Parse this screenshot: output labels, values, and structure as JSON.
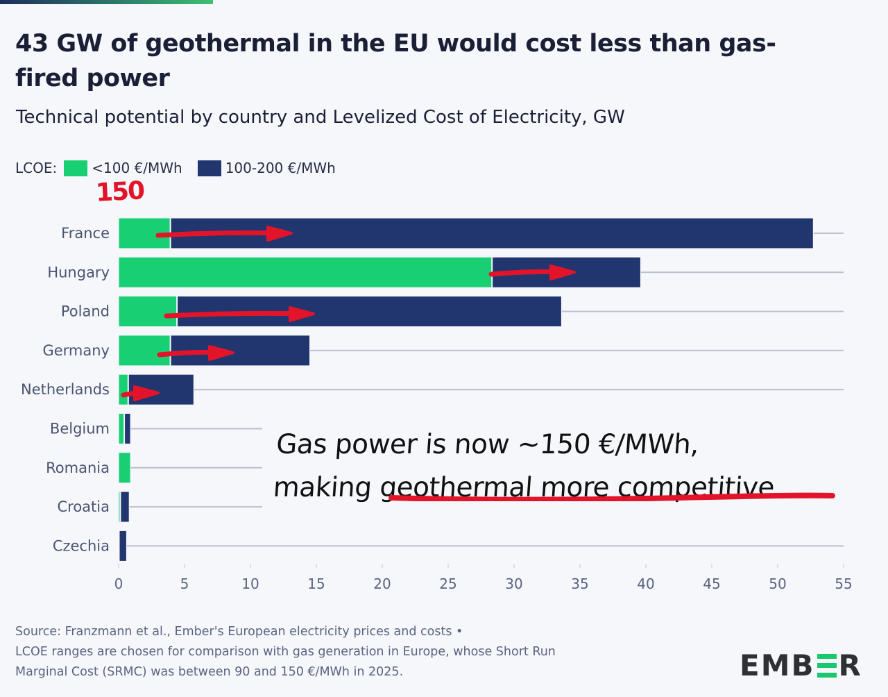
{
  "header": {
    "title": "43 GW of geothermal in the EU would cost less than gas-fired power",
    "subtitle": "Technical potential by country and Levelized Cost of Electricity, GW"
  },
  "legend": {
    "label": "LCOE:",
    "items": [
      {
        "label": "<100 €/MWh",
        "color": "#19cf73"
      },
      {
        "label": "100-200 €/MWh",
        "color": "#21356e"
      }
    ],
    "handwritten_note": "150"
  },
  "chart_data": {
    "type": "bar",
    "orientation": "horizontal",
    "stacked": true,
    "title": "43 GW of geothermal in the EU would cost less than gas-fired power",
    "subtitle": "Technical potential by country and Levelized Cost of Electricity, GW",
    "xlabel": "",
    "ylabel": "",
    "xlim": [
      0,
      55
    ],
    "x_ticks": [
      0,
      5,
      10,
      15,
      20,
      25,
      30,
      35,
      40,
      45,
      50,
      55
    ],
    "grid": true,
    "legend_position": "top-left",
    "categories": [
      "France",
      "Hungary",
      "Poland",
      "Germany",
      "Netherlands",
      "Belgium",
      "Romania",
      "Croatia",
      "Czechia"
    ],
    "series": [
      {
        "name": "<100 €/MWh",
        "color": "#19cf73",
        "values": [
          3.9,
          28.3,
          4.4,
          3.9,
          0.7,
          0.4,
          0.9,
          0.1,
          0.0
        ]
      },
      {
        "name": "100-200 €/MWh",
        "color": "#21356e",
        "values": [
          48.8,
          11.3,
          29.2,
          10.6,
          5.0,
          0.5,
          0.0,
          0.7,
          0.6
        ]
      }
    ]
  },
  "annotation": {
    "line1": "Gas power is now ~150 €/MWh,",
    "line2_prefix": "making ",
    "line2_underlined": "geothermal more competitive",
    "color": "#e3142a"
  },
  "footer": {
    "source_line1": "Source: Franzmann et al., Ember's European electricity prices and costs •",
    "source_line2": "LCOE ranges are chosen for comparison with gas generation in Europe, whose Short Run",
    "source_line3": "Marginal Cost (SRMC) was between 90 and 150 €/MWh in 2025.",
    "logo_prefix": "EMB",
    "logo_suffix": "R"
  }
}
